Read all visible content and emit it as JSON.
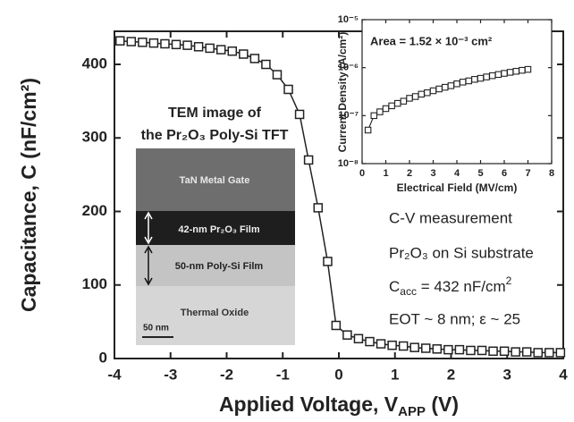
{
  "chart_data": {
    "type": "line",
    "y_label": "Capacitance, C (nF/cm²)",
    "x_label": {
      "main": "Applied Voltage, V",
      "sub": "APP",
      "rest": " (V)"
    },
    "x": [
      -3.9,
      -3.7,
      -3.5,
      -3.3,
      -3.1,
      -2.9,
      -2.7,
      -2.5,
      -2.3,
      -2.1,
      -1.9,
      -1.7,
      -1.5,
      -1.3,
      -1.1,
      -0.9,
      -0.7,
      -0.54,
      -0.37,
      -0.2,
      -0.05,
      0.15,
      0.35,
      0.55,
      0.75,
      0.95,
      1.15,
      1.35,
      1.55,
      1.75,
      1.95,
      2.15,
      2.35,
      2.55,
      2.75,
      2.95,
      3.15,
      3.35,
      3.55,
      3.75,
      3.95
    ],
    "values": [
      432,
      431,
      430,
      429,
      428,
      427,
      426,
      424,
      422,
      420,
      418,
      414,
      408,
      400,
      386,
      366,
      332,
      270,
      205,
      132,
      45,
      32,
      27,
      23,
      20,
      18,
      17,
      15,
      14,
      13,
      12,
      12,
      11,
      11,
      10,
      10,
      9,
      9,
      8,
      8,
      8
    ],
    "color": "#222222",
    "xlim": [
      -4,
      4
    ],
    "xticks": [
      -4,
      -3,
      -2,
      -1,
      0,
      1,
      2,
      3,
      4
    ],
    "ylim": [
      0,
      445
    ],
    "yticks": [
      0,
      100,
      200,
      300,
      400
    ],
    "annotations": [
      "C-V measurement",
      "Pr₂O₃ on Si substrate",
      {
        "main": "C",
        "sub": "acc",
        "rest": " = 432 nF/cm",
        "sup": "2"
      },
      "EOT ~ 8 nm; ε ~ 25"
    ],
    "tem": {
      "title": [
        "TEM image of",
        "the Pr₂O₃ Poly-Si TFT"
      ],
      "layers": [
        "TaN  Metal Gate",
        "42-nm Pr₂O₃ Film",
        "50-nm Poly-Si Film",
        "Thermal Oxide"
      ],
      "scale_bar": "50 nm"
    },
    "inset": {
      "type": "line",
      "y_label": "Current Density (A/cm²)",
      "x_label": "Electrical Field (MV/cm)",
      "annotation": "Area = 1.52 × 10⁻³ cm²",
      "yscale": "log",
      "x": [
        0.25,
        0.5,
        0.75,
        1,
        1.25,
        1.5,
        1.75,
        2,
        2.25,
        2.5,
        2.75,
        3,
        3.25,
        3.5,
        3.75,
        4,
        4.25,
        4.5,
        4.75,
        5,
        5.25,
        5.5,
        5.75,
        6,
        6.25,
        6.5,
        6.75,
        7
      ],
      "values": [
        5e-08,
        1e-07,
        1.2e-07,
        1.4e-07,
        1.6e-07,
        1.8e-07,
        2e-07,
        2.3e-07,
        2.5e-07,
        2.8e-07,
        3e-07,
        3.3e-07,
        3.6e-07,
        3.9e-07,
        4.2e-07,
        4.6e-07,
        5e-07,
        5.3e-07,
        5.7e-07,
        6e-07,
        6.4e-07,
        6.8e-07,
        7.2e-07,
        7.6e-07,
        8e-07,
        8.4e-07,
        8.8e-07,
        9.2e-07
      ],
      "xlim": [
        0,
        8
      ],
      "xticks": [
        0,
        1,
        2,
        3,
        4,
        5,
        6,
        7,
        8
      ],
      "ylim": [
        1e-08,
        1e-05
      ],
      "yticks": [
        {
          "value": 1e-08,
          "label": "10⁻⁸"
        },
        {
          "value": 1e-07,
          "label": "10⁻⁷"
        },
        {
          "value": 1e-06,
          "label": "10⁻⁶"
        },
        {
          "value": 1e-05,
          "label": "10⁻⁵"
        }
      ]
    }
  }
}
